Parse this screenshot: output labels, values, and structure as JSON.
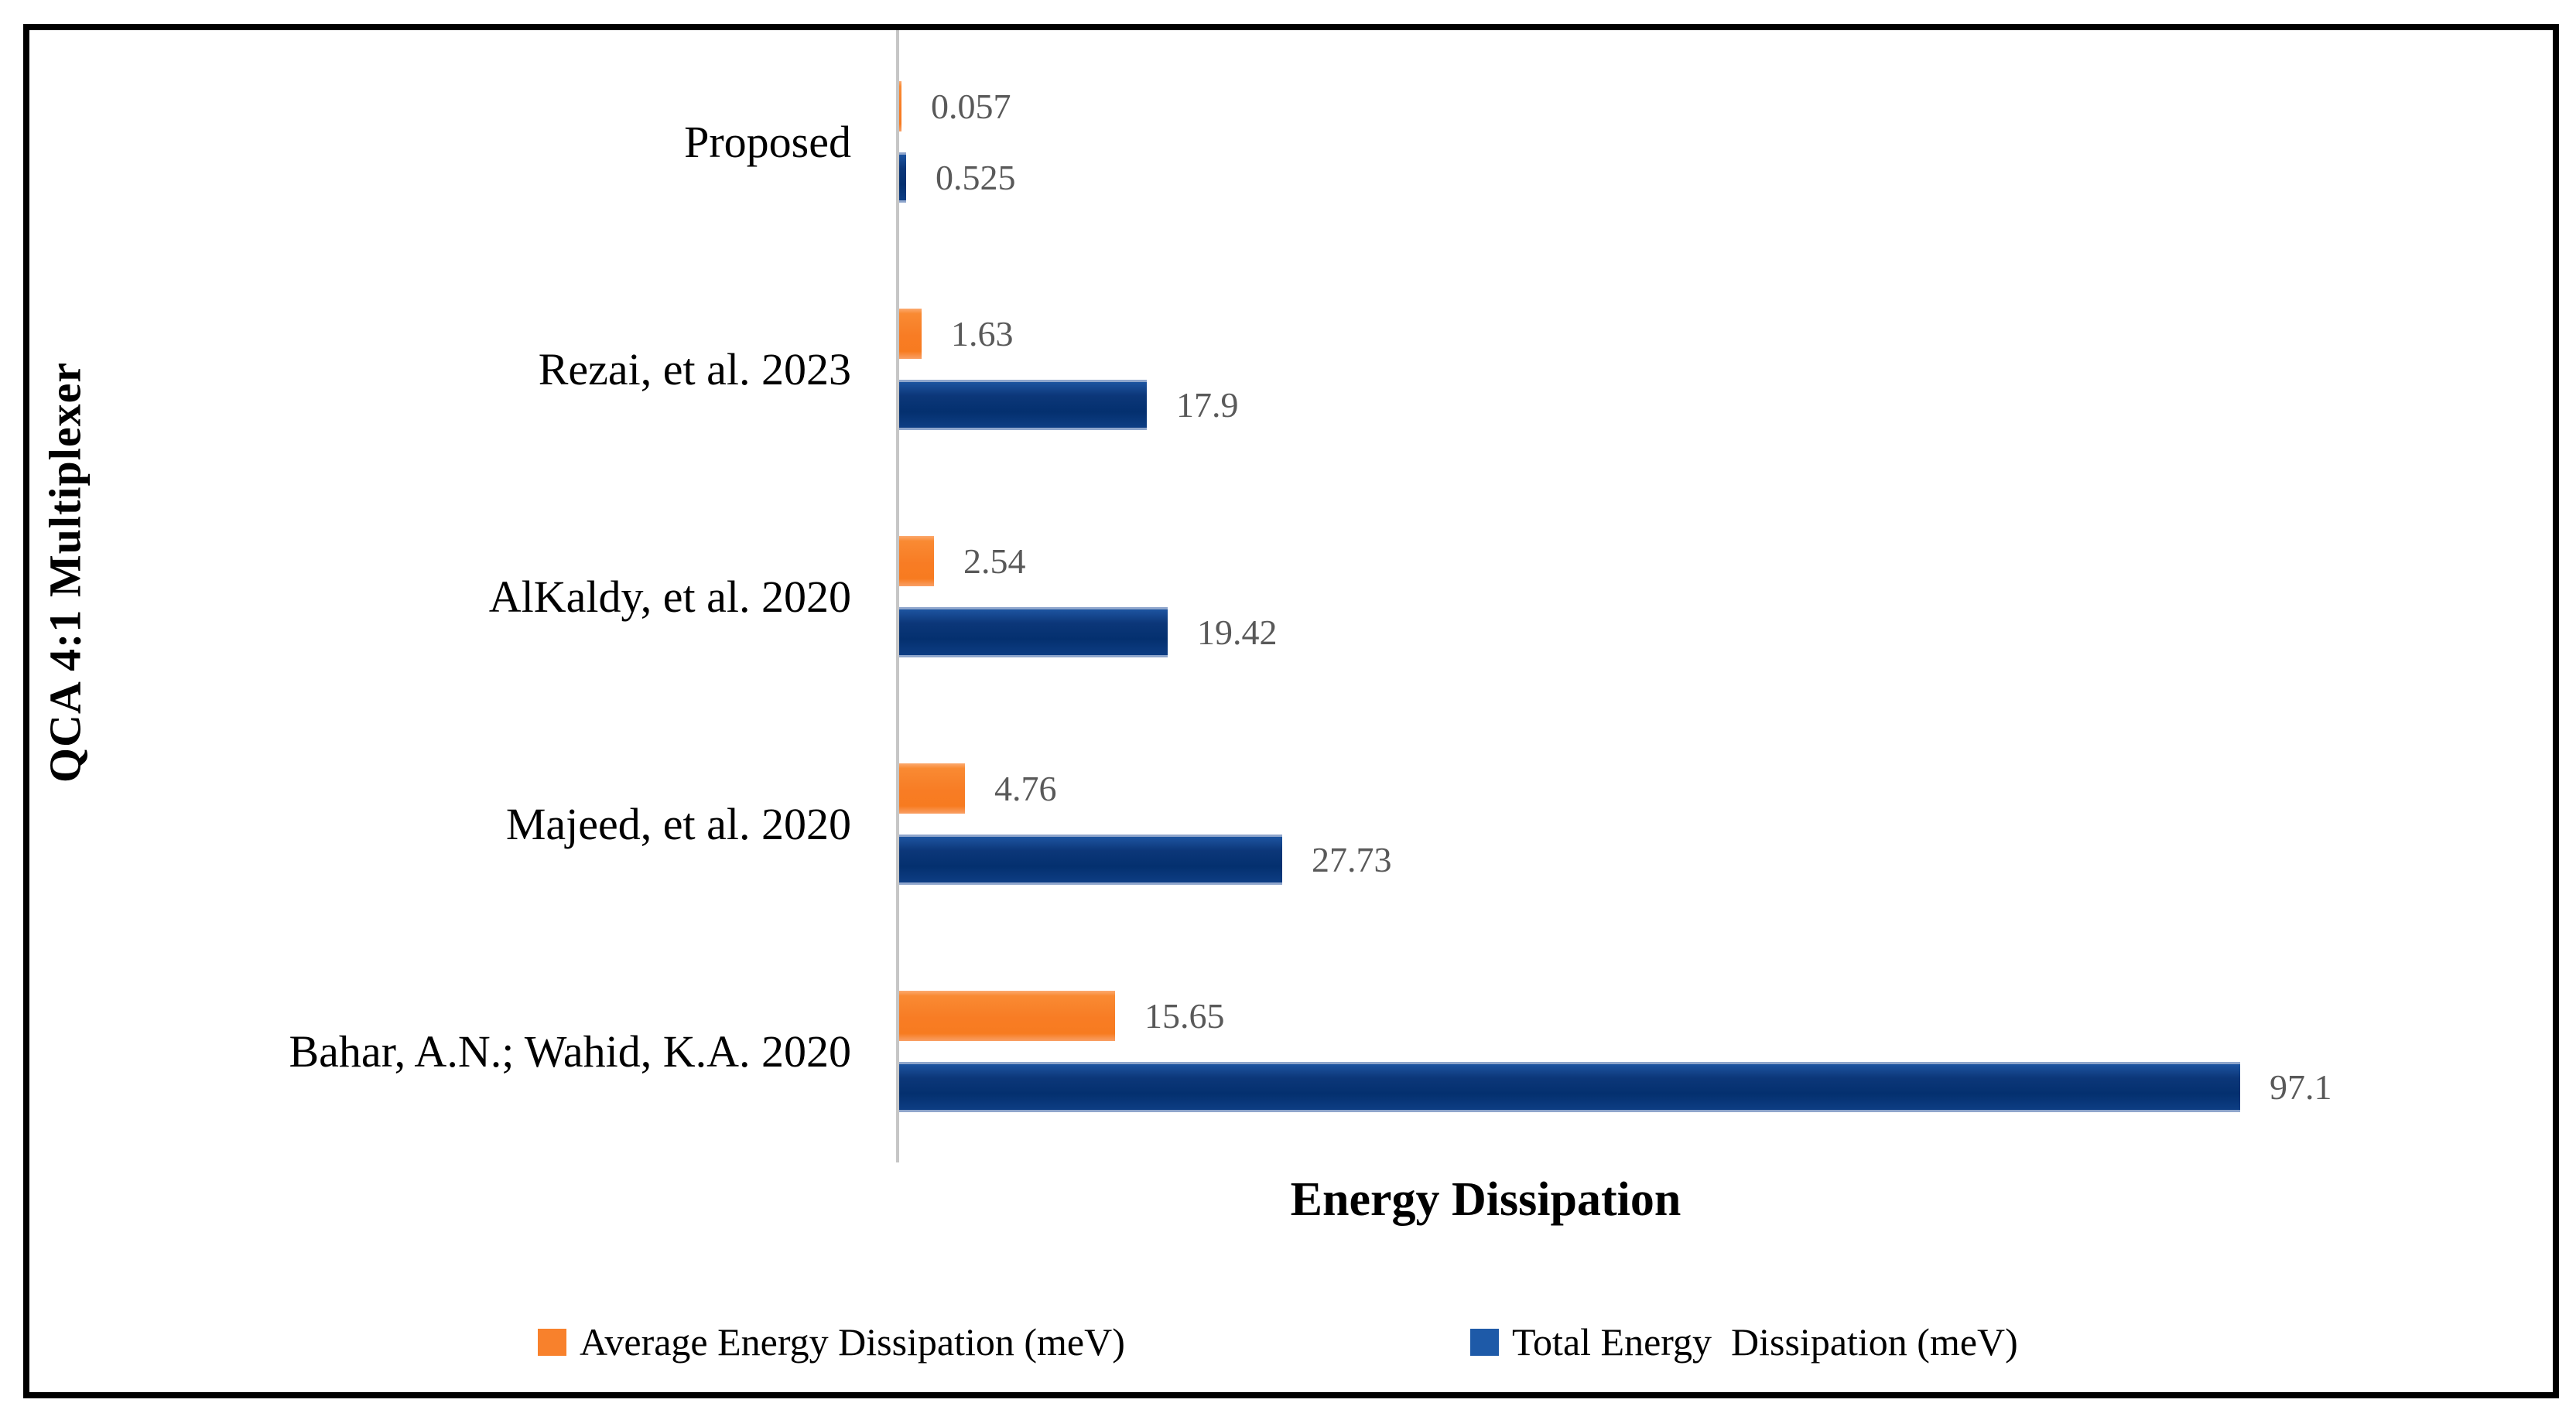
{
  "figure": {
    "frame_color": "#000000",
    "background_color": "#FFFFFF"
  },
  "chart_data": {
    "type": "bar",
    "orientation": "horizontal",
    "title": "",
    "xlabel": "Energy Dissipation",
    "ylabel": "QCA 4:1 Multiplexer",
    "grid": false,
    "legend_position": "bottom",
    "axis_line_color": "#C6C6C6",
    "value_label_color": "#595959",
    "xlim": [
      0,
      120
    ],
    "categories": [
      "Proposed",
      "Rezai, et al. 2023",
      "AlKaldy, et al. 2020",
      "Majeed, et al. 2020",
      "Bahar, A.N.; Wahid, K.A. 2020"
    ],
    "series": [
      {
        "name": "Average Energy Dissipation (meV)",
        "color": "#F8812C",
        "values": [
          0.057,
          1.63,
          2.54,
          4.76,
          15.65
        ],
        "labels": [
          "0.057",
          "1.63",
          "2.54",
          "4.76",
          "15.65"
        ]
      },
      {
        "name": "Total Energy  Dissipation (meV)",
        "color": "#1E5AA8",
        "values": [
          0.525,
          17.9,
          19.42,
          27.73,
          97.1
        ],
        "labels": [
          "0.525",
          "17.9",
          "19.42",
          "27.73",
          "97.1"
        ]
      }
    ]
  }
}
